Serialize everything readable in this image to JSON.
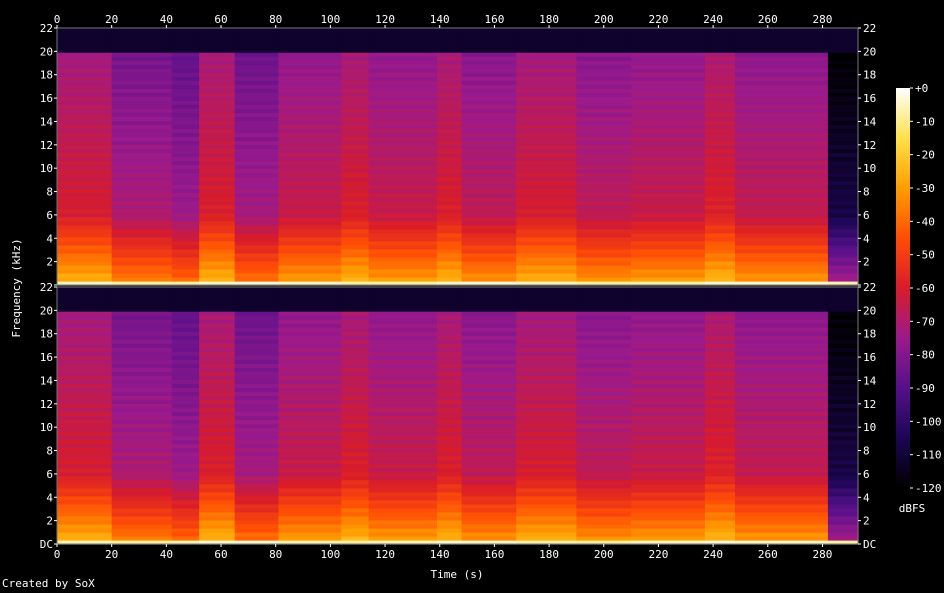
{
  "chart_data": {
    "type": "heatmap",
    "subtype": "spectrogram",
    "xlabel": "Time (s)",
    "ylabel": "Frequency (kHz)",
    "xlim": [
      0,
      293
    ],
    "ylim": [
      0,
      22
    ],
    "x_ticks": [
      0,
      20,
      40,
      60,
      80,
      100,
      120,
      140,
      160,
      180,
      200,
      220,
      240,
      260,
      280
    ],
    "y_ticks": [
      "DC",
      "2",
      "4",
      "6",
      "8",
      "10",
      "12",
      "14",
      "16",
      "18",
      "20",
      "22"
    ],
    "channels": 2,
    "colorbar": {
      "unit": "dBFS",
      "ticks": [
        "+0",
        "-10",
        "-20",
        "-30",
        "-40",
        "-50",
        "-60",
        "-70",
        "-80",
        "-90",
        "-100",
        "-110",
        "-120"
      ],
      "range_db": [
        -120,
        0
      ]
    },
    "lowpass_cutoff_khz": 20,
    "segments": [
      {
        "t0": 0,
        "t1": 20,
        "level": -58
      },
      {
        "t0": 20,
        "t1": 42,
        "level": -68
      },
      {
        "t0": 42,
        "t1": 52,
        "level": -72
      },
      {
        "t0": 52,
        "t1": 65,
        "level": -57
      },
      {
        "t0": 65,
        "t1": 81,
        "level": -70
      },
      {
        "t0": 81,
        "t1": 104,
        "level": -62
      },
      {
        "t0": 104,
        "t1": 114,
        "level": -57
      },
      {
        "t0": 114,
        "t1": 139,
        "level": -62
      },
      {
        "t0": 139,
        "t1": 148,
        "level": -57
      },
      {
        "t0": 148,
        "t1": 168,
        "level": -64
      },
      {
        "t0": 168,
        "t1": 190,
        "level": -58
      },
      {
        "t0": 190,
        "t1": 210,
        "level": -64
      },
      {
        "t0": 210,
        "t1": 237,
        "level": -62
      },
      {
        "t0": 237,
        "t1": 248,
        "level": -56
      },
      {
        "t0": 248,
        "t1": 282,
        "level": -63
      },
      {
        "t0": 282,
        "t1": 293,
        "level": -105
      }
    ],
    "credit": "Created by SoX"
  },
  "colors": {
    "background": "#000000",
    "colormap": [
      "#000000",
      "#1c0654",
      "#55108a",
      "#9b1a8c",
      "#d81c2a",
      "#ff4d06",
      "#ff9e00",
      "#ffe14a",
      "#ffffff"
    ]
  }
}
